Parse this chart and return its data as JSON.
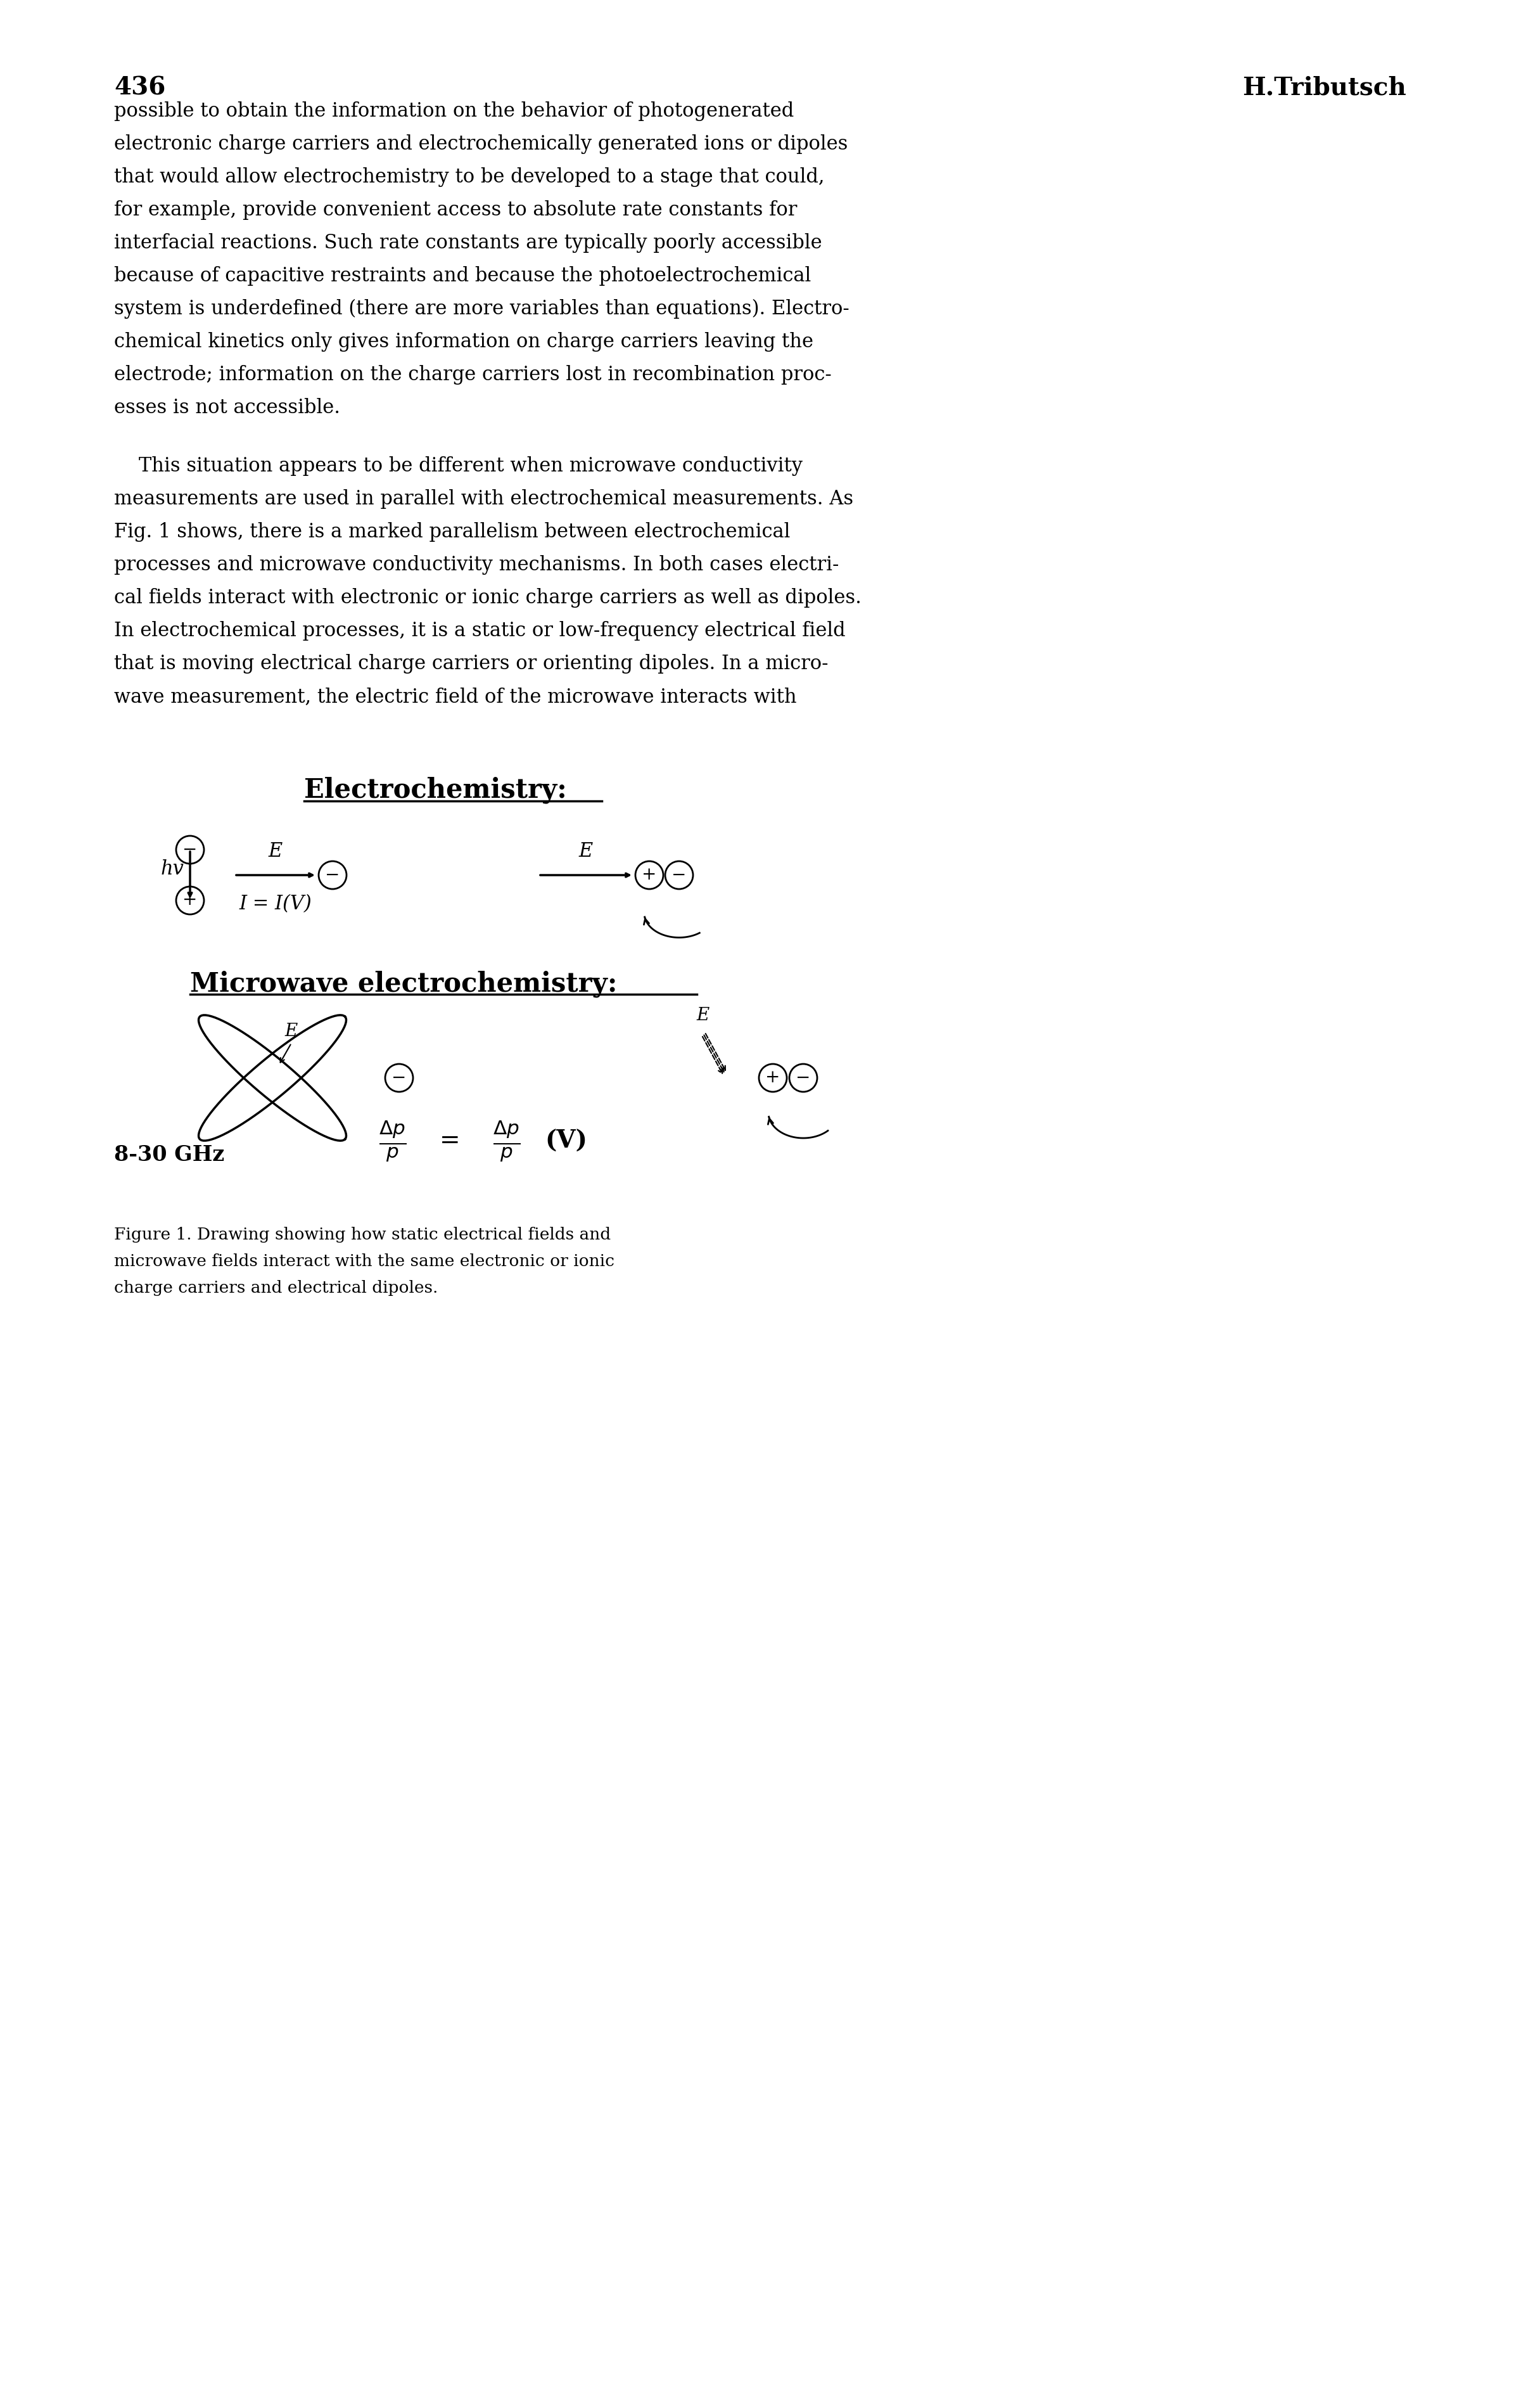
{
  "page_number": "436",
  "author": "H.Tributsch",
  "background_color": "#ffffff",
  "text_color": "#000000",
  "body_text": [
    "possible to obtain the information on the behavior of photogenerated",
    "electronic charge carriers and electrochemically generated ions or dipoles",
    "that would allow electrochemistry to be developed to a stage that could,",
    "for example, provide convenient access to absolute rate constants for",
    "interfacial reactions. Such rate constants are typically poorly accessible",
    "because of capacitive restraints and because the photoelectrochemical",
    "system is underdefined (there are more variables than equations). Electro-",
    "chemical kinetics only gives information on charge carriers leaving the",
    "electrode; information on the charge carriers lost in recombination proc-",
    "esses is not accessible."
  ],
  "body_text2": [
    "    This situation appears to be different when microwave conductivity",
    "measurements are used in parallel with electrochemical measurements. As",
    "Fig. 1 shows, there is a marked parallelism between electrochemical",
    "processes and microwave conductivity mechanisms. In both cases electri-",
    "cal fields interact with electronic or ionic charge carriers as well as dipoles.",
    "In electrochemical processes, it is a static or low-frequency electrical field",
    "that is moving electrical charge carriers or orienting dipoles. In a micro-",
    "wave measurement, the electric field of the microwave interacts with"
  ],
  "section1_title": "Electrochemistry:",
  "section2_title": "Microwave electrochemistry:",
  "caption_lines": [
    "Figure 1. Drawing showing how static electrical fields and",
    "microwave fields interact with the same electronic or ionic",
    "charge carriers and electrical dipoles."
  ],
  "fig_label": "8-30 GHz"
}
